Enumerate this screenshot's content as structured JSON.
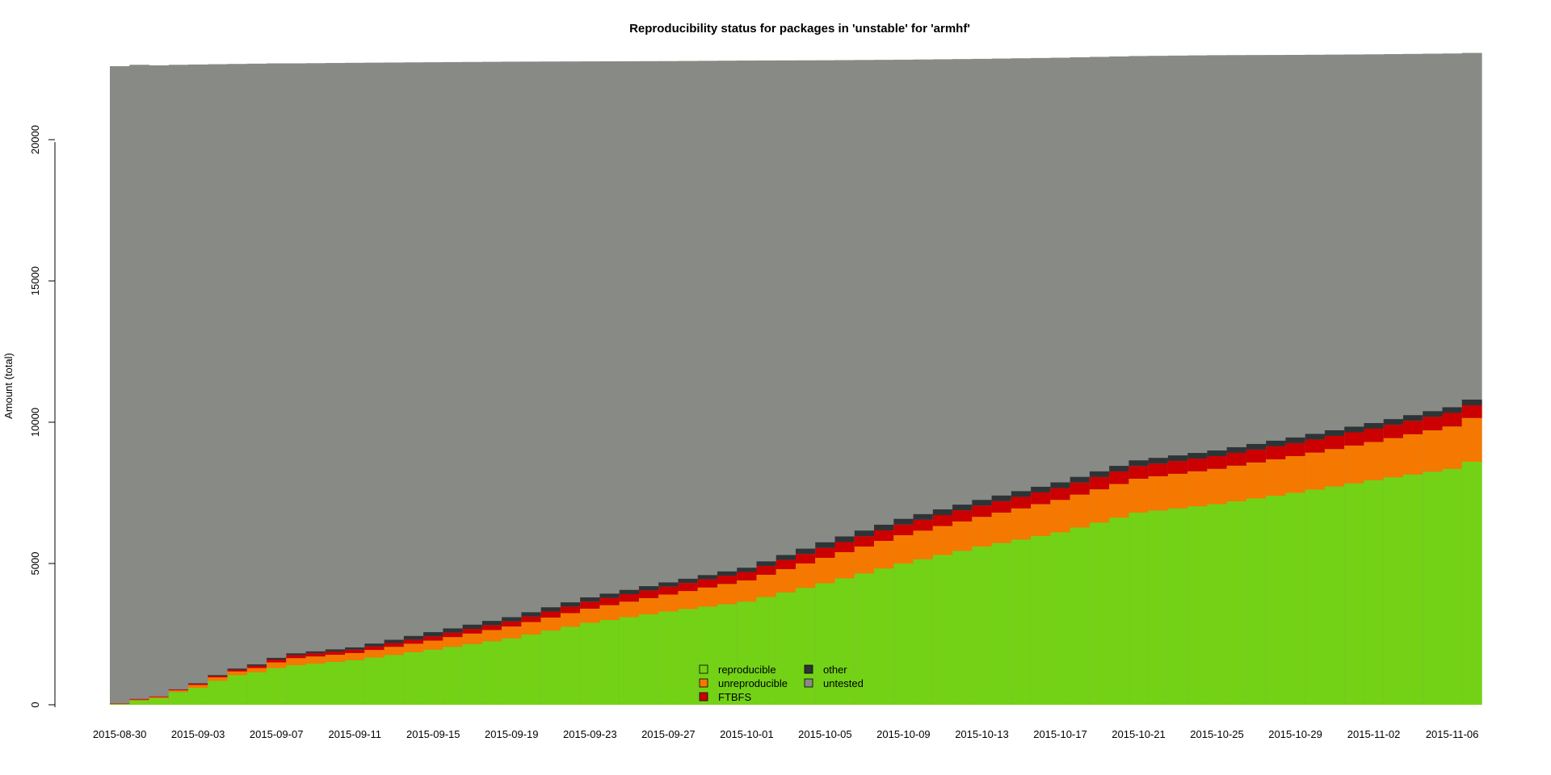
{
  "chart_data": {
    "type": "area",
    "title": "Reproducibility status for packages in 'unstable' for 'armhf'",
    "xlabel": "",
    "ylabel": "Amount (total)",
    "ylim": [
      0,
      23000
    ],
    "yticks": [
      0,
      5000,
      10000,
      15000,
      20000
    ],
    "xtick_labels": [
      "2015-08-30",
      "2015-09-03",
      "2015-09-07",
      "2015-09-11",
      "2015-09-15",
      "2015-09-19",
      "2015-09-23",
      "2015-09-27",
      "2015-10-01",
      "2015-10-05",
      "2015-10-09",
      "2015-10-13",
      "2015-10-17",
      "2015-10-21",
      "2015-10-25",
      "2015-10-29",
      "2015-11-02",
      "2015-11-06"
    ],
    "x_start": "2015-08-30",
    "x_end": "2015-11-08",
    "grid": false,
    "legend_position": "bottom-center",
    "stacked": true,
    "step": true,
    "anchors": {
      "x": [
        "2015-08-30",
        "2015-08-31",
        "2015-09-01",
        "2015-09-02",
        "2015-09-03",
        "2015-09-04",
        "2015-09-05",
        "2015-09-06",
        "2015-09-07",
        "2015-09-08",
        "2015-09-11",
        "2015-09-15",
        "2015-09-19",
        "2015-09-23",
        "2015-09-27",
        "2015-10-01",
        "2015-10-05",
        "2015-10-09",
        "2015-10-13",
        "2015-10-17",
        "2015-10-21",
        "2015-10-25",
        "2015-10-29",
        "2015-11-02",
        "2015-11-06",
        "2015-11-07"
      ],
      "reproducible": [
        20,
        150,
        230,
        450,
        600,
        850,
        1050,
        1150,
        1300,
        1400,
        1580,
        1950,
        2350,
        2900,
        3300,
        3650,
        4300,
        5000,
        5600,
        6100,
        6800,
        7100,
        7500,
        7950,
        8350,
        8600
      ],
      "unreproducible": [
        20,
        30,
        40,
        60,
        100,
        120,
        130,
        150,
        200,
        250,
        250,
        320,
        420,
        500,
        600,
        750,
        900,
        1000,
        1050,
        1150,
        1200,
        1250,
        1300,
        1350,
        1500,
        1550
      ],
      "FTBFS": [
        10,
        20,
        20,
        25,
        40,
        50,
        60,
        80,
        100,
        110,
        120,
        150,
        180,
        250,
        280,
        300,
        350,
        380,
        400,
        420,
        450,
        450,
        460,
        470,
        480,
        450
      ],
      "other": [
        5,
        5,
        5,
        10,
        20,
        30,
        40,
        50,
        60,
        60,
        80,
        150,
        150,
        150,
        150,
        150,
        200,
        200,
        200,
        200,
        200,
        200,
        200,
        200,
        200,
        200
      ],
      "total": [
        22600,
        22650,
        22630,
        22650,
        22660,
        22670,
        22680,
        22690,
        22700,
        22700,
        22720,
        22740,
        22760,
        22770,
        22780,
        22800,
        22810,
        22830,
        22860,
        22900,
        22960,
        22990,
        23000,
        23020,
        23050,
        23070
      ]
    },
    "series": [
      {
        "name": "reproducible",
        "color": "#73d216"
      },
      {
        "name": "unreproducible",
        "color": "#f57900"
      },
      {
        "name": "FTBFS",
        "color": "#cc0000"
      },
      {
        "name": "other",
        "color": "#2e3436"
      },
      {
        "name": "untested",
        "color": "#888a85"
      }
    ]
  }
}
